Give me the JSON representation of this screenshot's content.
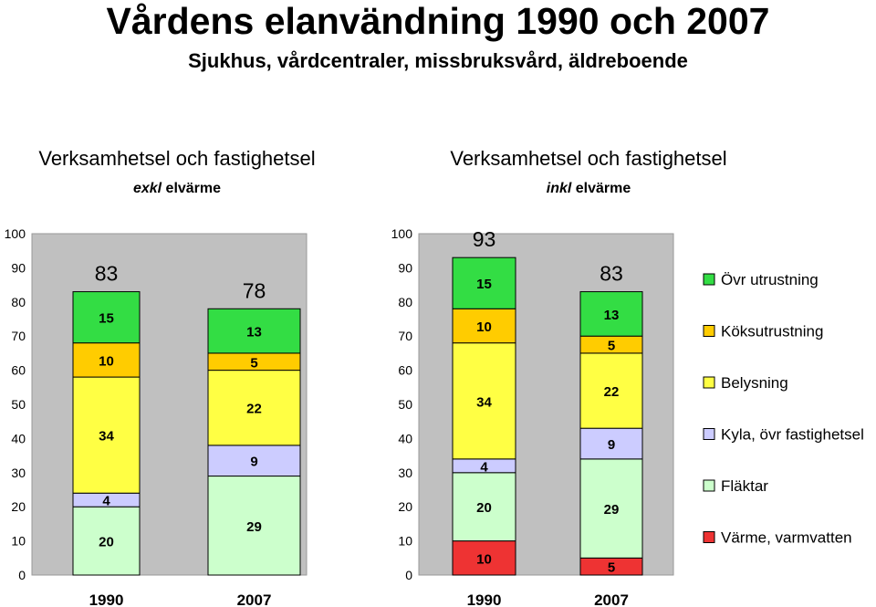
{
  "title": "Vårdens elanvändning 1990 och 2007",
  "subtitle": "Sjukhus, vårdcentraler, missbruksvård, äldreboende",
  "colors": {
    "Övr utrustning": "#33dd44",
    "Köksutrustning": "#ffcc00",
    "Belysning": "#ffff44",
    "Kyla, övr fastighetsel": "#ccccff",
    "Fläktar": "#ccffcc",
    "Värme, varmvatten": "#ee3333"
  },
  "legend": [
    "Övr utrustning",
    "Köksutrustning",
    "Belysning",
    "Kyla, övr fastighetsel",
    "Fläktar",
    "Värme, varmvatten"
  ],
  "chart_data": [
    {
      "type": "bar",
      "stacked": true,
      "title": "Verksamhetsel och fastighetsel",
      "subtitle_em": "exkl",
      "subtitle_rest": " elvärme",
      "categories": [
        "1990",
        "2007"
      ],
      "ylim": [
        0,
        100
      ],
      "yticks": [
        0,
        10,
        20,
        30,
        40,
        50,
        60,
        70,
        80,
        90,
        100
      ],
      "grid": false,
      "totals": [
        83,
        78
      ],
      "series": [
        {
          "name": "Fläktar",
          "values": [
            20,
            29
          ]
        },
        {
          "name": "Kyla, övr fastighetsel",
          "values": [
            4,
            9
          ]
        },
        {
          "name": "Belysning",
          "values": [
            34,
            22
          ]
        },
        {
          "name": "Köksutrustning",
          "values": [
            10,
            5
          ]
        },
        {
          "name": "Övr utrustning",
          "values": [
            15,
            13
          ]
        }
      ]
    },
    {
      "type": "bar",
      "stacked": true,
      "title": "Verksamhetsel och fastighetsel",
      "subtitle_em": "inkl",
      "subtitle_rest": " elvärme",
      "categories": [
        "1990",
        "2007"
      ],
      "ylim": [
        0,
        100
      ],
      "yticks": [
        0,
        10,
        20,
        30,
        40,
        50,
        60,
        70,
        80,
        90,
        100
      ],
      "grid": false,
      "totals": [
        93,
        83
      ],
      "series": [
        {
          "name": "Värme, varmvatten",
          "values": [
            10,
            5
          ]
        },
        {
          "name": "Fläktar",
          "values": [
            20,
            29
          ]
        },
        {
          "name": "Kyla, övr fastighetsel",
          "values": [
            4,
            9
          ]
        },
        {
          "name": "Belysning",
          "values": [
            34,
            22
          ]
        },
        {
          "name": "Köksutrustning",
          "values": [
            10,
            5
          ]
        },
        {
          "name": "Övr utrustning",
          "values": [
            15,
            13
          ]
        }
      ]
    }
  ]
}
